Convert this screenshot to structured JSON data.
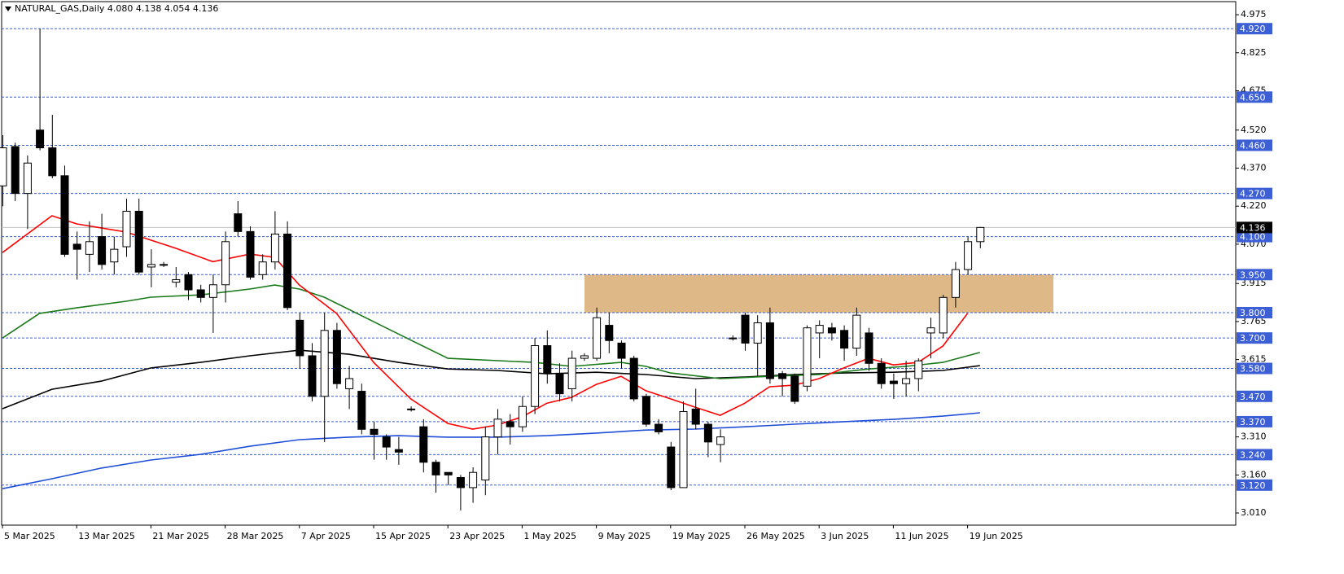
{
  "chart_data": {
    "type": "candlestick",
    "title": "NATURAL_GAS,Daily  4.080 4.138 4.054 4.136",
    "categories": [
      "5 Mar 2025",
      null,
      null,
      null,
      null,
      null,
      "13 Mar 2025",
      null,
      null,
      null,
      null,
      null,
      "21 Mar 2025",
      null,
      null,
      null,
      null,
      null,
      "28 Mar 2025",
      null,
      null,
      null,
      null,
      null,
      "7 Apr 2025",
      null,
      null,
      null,
      null,
      null,
      "15 Apr 2025",
      null,
      null,
      null,
      null,
      null,
      "23 Apr 2025",
      null,
      null,
      null,
      null,
      null,
      "1 May 2025",
      null,
      null,
      null,
      null,
      null,
      "9 May 2025",
      null,
      null,
      null,
      null,
      null,
      "19 May 2025",
      null,
      null,
      null,
      null,
      null,
      "26 May 2025",
      null,
      null,
      null,
      null,
      null,
      "3 Jun 2025",
      null,
      null,
      null,
      null,
      null,
      "11 Jun 2025",
      null,
      null,
      null,
      null,
      null,
      "19 Jun 2025",
      null
    ],
    "open": [
      4.3,
      4.455,
      4.27,
      4.52,
      4.45,
      4.34,
      4.07,
      4.03,
      4.1,
      4.0,
      4.06,
      4.2,
      3.98,
      3.99,
      3.92,
      3.95,
      3.89,
      3.86,
      3.91,
      4.19,
      4.12,
      3.95,
      4.0,
      4.11,
      3.77,
      3.63,
      3.47,
      3.73,
      3.5,
      3.49,
      3.34,
      3.31,
      3.26,
      3.42,
      3.35,
      3.21,
      3.17,
      3.15,
      3.11,
      3.14,
      3.31,
      3.37,
      3.35,
      3.43,
      3.67,
      3.56,
      3.5,
      3.62,
      3.62,
      3.75,
      3.68,
      3.62,
      3.47,
      3.36,
      3.27,
      3.11,
      3.42,
      3.36,
      3.28,
      3.7,
      3.79,
      3.68,
      3.76,
      3.56,
      3.55,
      3.51,
      3.72,
      3.74,
      3.73,
      3.66,
      3.72,
      3.6,
      3.53,
      3.52,
      3.54,
      3.72,
      3.72,
      3.86,
      3.97,
      4.08
    ],
    "high": [
      4.5,
      4.47,
      4.42,
      4.92,
      4.58,
      4.38,
      4.12,
      4.16,
      4.19,
      4.1,
      4.25,
      4.25,
      4.05,
      4.0,
      3.98,
      3.96,
      3.91,
      3.95,
      4.12,
      4.24,
      4.14,
      4.03,
      4.2,
      4.16,
      3.8,
      3.68,
      3.8,
      3.76,
      3.59,
      3.52,
      3.37,
      3.32,
      3.31,
      3.43,
      3.38,
      3.22,
      3.17,
      3.16,
      3.19,
      3.35,
      3.42,
      3.4,
      3.47,
      3.7,
      3.73,
      3.6,
      3.65,
      3.64,
      3.82,
      3.8,
      3.69,
      3.63,
      3.48,
      3.38,
      3.29,
      3.45,
      3.5,
      3.37,
      3.34,
      3.71,
      3.8,
      3.79,
      3.82,
      3.57,
      3.56,
      3.75,
      3.77,
      3.76,
      3.75,
      3.82,
      3.74,
      3.62,
      3.56,
      3.61,
      3.62,
      3.78,
      3.87,
      4.0,
      4.1,
      4.138
    ],
    "low": [
      4.22,
      4.24,
      4.13,
      4.44,
      4.33,
      4.02,
      3.93,
      3.96,
      3.97,
      3.95,
      4.02,
      3.95,
      3.9,
      3.98,
      3.9,
      3.85,
      3.84,
      3.72,
      3.84,
      4.1,
      3.93,
      3.93,
      3.97,
      3.81,
      3.58,
      3.45,
      3.29,
      3.5,
      3.42,
      3.32,
      3.22,
      3.22,
      3.2,
      3.41,
      3.17,
      3.09,
      3.12,
      3.02,
      3.05,
      3.08,
      3.24,
      3.28,
      3.33,
      3.4,
      3.52,
      3.45,
      3.45,
      3.61,
      3.61,
      3.64,
      3.58,
      3.45,
      3.35,
      3.32,
      3.1,
      3.11,
      3.34,
      3.23,
      3.21,
      3.69,
      3.65,
      3.55,
      3.52,
      3.47,
      3.44,
      3.49,
      3.62,
      3.69,
      3.61,
      3.63,
      3.57,
      3.5,
      3.46,
      3.47,
      3.49,
      3.62,
      3.7,
      3.82,
      3.95,
      4.054
    ],
    "close": [
      4.45,
      4.27,
      4.39,
      4.45,
      4.34,
      4.03,
      4.05,
      4.08,
      3.99,
      4.05,
      4.2,
      3.96,
      3.99,
      3.99,
      3.93,
      3.89,
      3.86,
      3.91,
      4.08,
      4.12,
      3.94,
      4.0,
      4.11,
      3.82,
      3.63,
      3.47,
      3.73,
      3.52,
      3.54,
      3.34,
      3.32,
      3.27,
      3.25,
      3.42,
      3.21,
      3.16,
      3.16,
      3.11,
      3.17,
      3.31,
      3.38,
      3.35,
      3.43,
      3.67,
      3.56,
      3.48,
      3.62,
      3.63,
      3.78,
      3.69,
      3.62,
      3.46,
      3.36,
      3.33,
      3.11,
      3.41,
      3.36,
      3.29,
      3.31,
      3.7,
      3.68,
      3.76,
      3.54,
      3.54,
      3.45,
      3.74,
      3.75,
      3.72,
      3.66,
      3.79,
      3.6,
      3.52,
      3.52,
      3.54,
      3.61,
      3.74,
      3.86,
      3.97,
      4.08,
      4.136
    ],
    "moving_averages": [
      {
        "color": "#1f4fd8",
        "x": [
          0,
          4,
          8,
          12,
          16,
          20,
          24,
          28,
          32,
          36,
          40,
          44,
          48,
          52,
          56,
          60,
          64,
          68,
          72,
          76,
          79
        ],
        "values": [
          3.106,
          3.145,
          3.187,
          3.219,
          3.241,
          3.273,
          3.299,
          3.309,
          3.315,
          3.309,
          3.309,
          3.315,
          3.325,
          3.337,
          3.341,
          3.35,
          3.36,
          3.37,
          3.379,
          3.392,
          3.405
        ]
      },
      {
        "color": "#000000",
        "x": [
          0,
          4,
          8,
          12,
          16,
          20,
          24,
          28,
          32,
          36,
          40,
          44,
          48,
          52,
          56,
          60,
          64,
          68,
          72,
          76,
          79
        ],
        "values": [
          3.421,
          3.498,
          3.53,
          3.582,
          3.604,
          3.63,
          3.652,
          3.636,
          3.604,
          3.578,
          3.572,
          3.559,
          3.565,
          3.556,
          3.54,
          3.546,
          3.556,
          3.562,
          3.565,
          3.572,
          3.591
        ]
      },
      {
        "color": "#1a7a1a",
        "x": [
          0,
          3,
          6,
          10,
          12,
          16,
          20,
          22,
          24,
          26,
          28,
          32,
          36,
          43,
          46,
          50,
          52,
          54,
          58,
          62,
          66,
          70,
          73,
          76,
          79
        ],
        "values": [
          3.7,
          3.797,
          3.819,
          3.845,
          3.861,
          3.87,
          3.893,
          3.909,
          3.893,
          3.861,
          3.813,
          3.716,
          3.62,
          3.604,
          3.588,
          3.604,
          3.588,
          3.562,
          3.54,
          3.549,
          3.556,
          3.578,
          3.588,
          3.604,
          3.643
        ]
      },
      {
        "color": "#ff0000",
        "x": [
          0,
          4,
          6,
          10,
          14,
          17,
          20,
          22,
          24,
          27,
          30,
          33,
          36,
          38,
          40,
          42,
          44,
          46,
          48,
          50,
          52,
          54,
          56,
          58,
          60,
          62,
          64,
          66,
          68,
          70,
          72,
          74,
          76,
          78
        ],
        "values": [
          4.037,
          4.182,
          4.15,
          4.118,
          4.054,
          4.001,
          4.031,
          4.018,
          3.909,
          3.797,
          3.604,
          3.46,
          3.363,
          3.341,
          3.357,
          3.389,
          3.443,
          3.466,
          3.517,
          3.549,
          3.492,
          3.46,
          3.427,
          3.395,
          3.443,
          3.508,
          3.514,
          3.54,
          3.582,
          3.62,
          3.594,
          3.604,
          3.668,
          3.797
        ]
      }
    ],
    "zone": {
      "from": 3.8,
      "to": 3.95,
      "color": "#deb887"
    },
    "ylim": [
      2.962,
      5.033
    ],
    "yticks": [
      4.975,
      4.825,
      4.675,
      {
        "value": 4.52,
        "label": "4.520"
      },
      {
        "value": 4.37,
        "label": "4.370"
      },
      {
        "value": 4.22,
        "label": "4.220"
      },
      {
        "value": 4.07,
        "label": "4.070"
      },
      3.915,
      3.765,
      3.615,
      {
        "value": 3.31,
        "label": "3.310"
      },
      {
        "value": 3.16,
        "label": "3.160"
      },
      {
        "value": 3.01,
        "label": "3.010"
      }
    ],
    "levels": [
      {
        "value": 4.92,
        "label": "4.920"
      },
      {
        "value": 4.65,
        "label": "4.650"
      },
      {
        "value": 4.46,
        "label": "4.460"
      },
      {
        "value": 4.27,
        "label": "4.270"
      },
      {
        "value": 4.1,
        "label": "4.100"
      },
      {
        "value": 3.95,
        "label": "3.950"
      },
      {
        "value": 3.8,
        "label": "3.800"
      },
      {
        "value": 3.7,
        "label": "3.700"
      },
      {
        "value": 3.58,
        "label": "3.580"
      },
      {
        "value": 3.47,
        "label": "3.470"
      },
      {
        "value": 3.37,
        "label": "3.370"
      },
      {
        "value": 3.24,
        "label": "3.240"
      },
      {
        "value": 3.12,
        "label": "3.120"
      }
    ],
    "level_color": "#3c5fd6",
    "current": 4.136
  }
}
